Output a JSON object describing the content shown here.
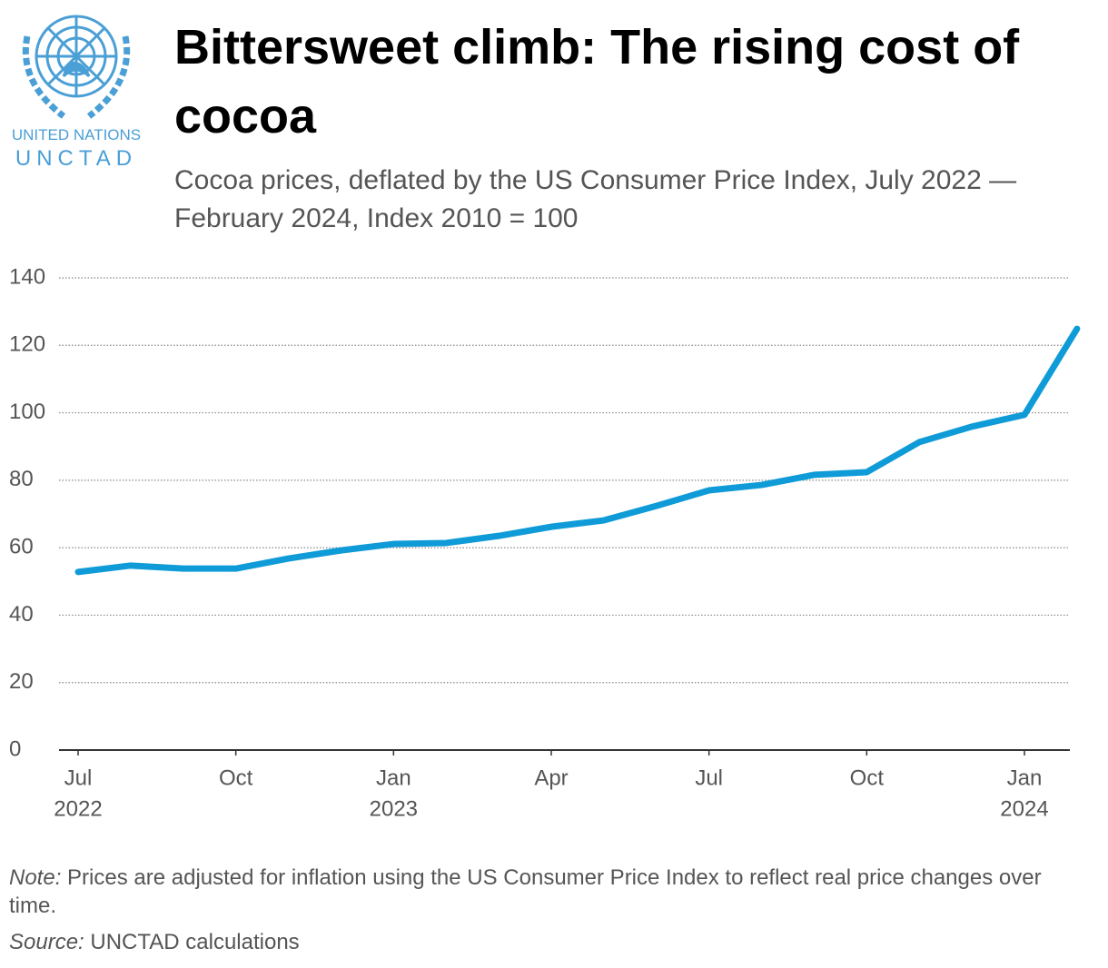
{
  "logo": {
    "line1": "UNITED NATIONS",
    "line2": "UNCTAD"
  },
  "chart_data": {
    "type": "line",
    "title": "Bittersweet climb: The rising cost of cocoa",
    "subtitle": "Cocoa prices, deflated by the US Consumer Price Index, July 2022 — February 2024, Index 2010 = 100",
    "categories": [
      "Jul",
      null,
      null,
      "Oct",
      null,
      null,
      "Jan",
      null,
      null,
      "Apr",
      null,
      null,
      "Jul",
      null,
      null,
      "Oct",
      null,
      null,
      "Jan",
      null
    ],
    "years": [
      "2022",
      null,
      null,
      null,
      null,
      null,
      "2023",
      null,
      null,
      null,
      null,
      null,
      null,
      null,
      null,
      null,
      null,
      null,
      "2024",
      null
    ],
    "values": [
      52.8,
      54.7,
      53.8,
      53.8,
      56.8,
      59.2,
      61.1,
      61.4,
      63.5,
      66.2,
      68.1,
      72.4,
      77.0,
      78.6,
      81.6,
      82.4,
      91.3,
      95.9,
      99.4,
      124.9
    ],
    "color": "#0f9bd7",
    "ylim": [
      0,
      140
    ],
    "yticks": [
      0,
      20,
      40,
      60,
      80,
      100,
      120,
      140
    ],
    "grid": true,
    "note_label": "Note:",
    "note": "Prices are adjusted for inflation using the US Consumer Price Index to reflect real price changes over time.",
    "source_label": "Source:",
    "source": "UNCTAD calculations"
  }
}
